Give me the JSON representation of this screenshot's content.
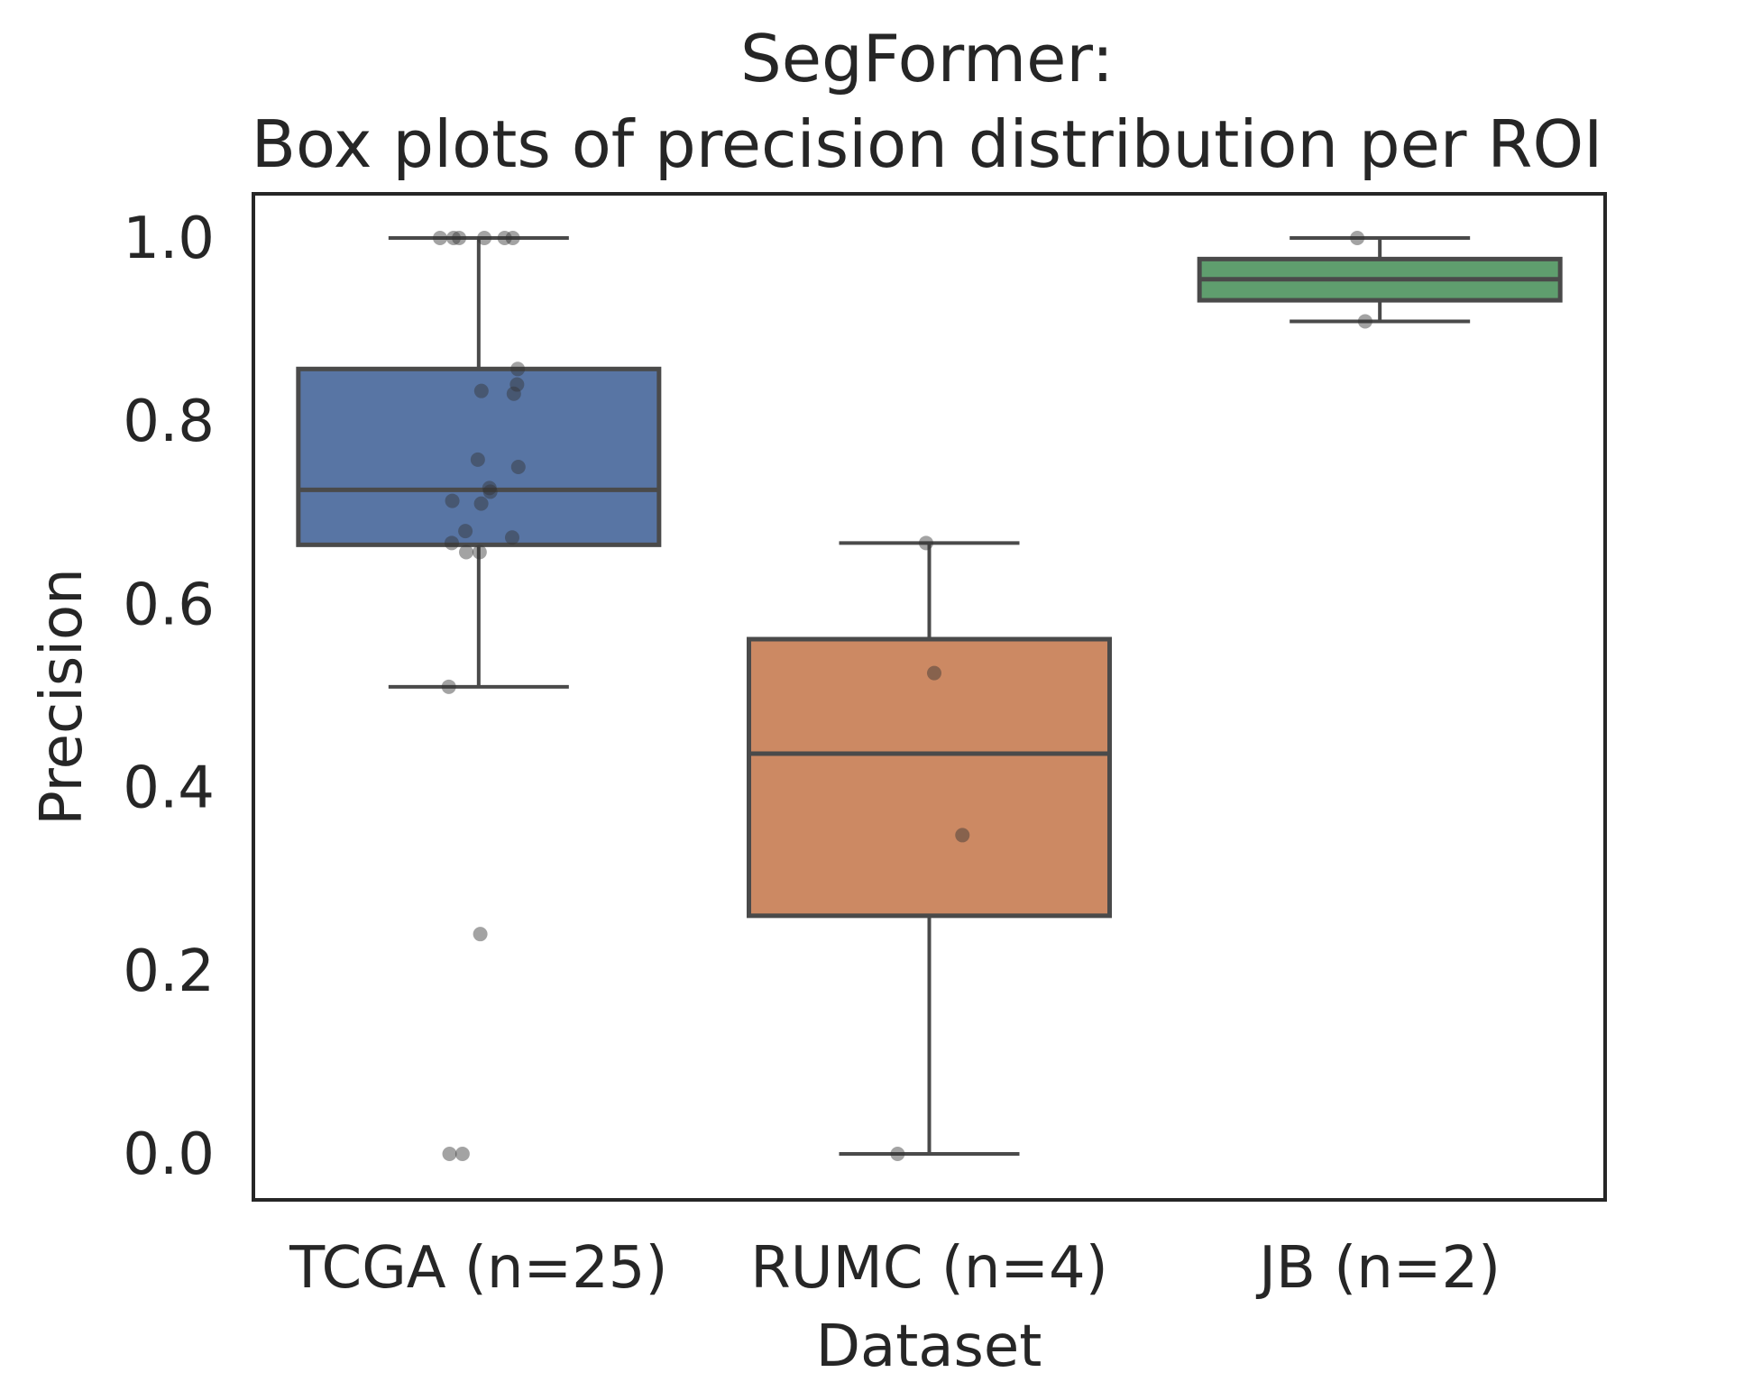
{
  "chart_data": {
    "type": "box",
    "title": [
      "SegFormer:",
      "Box plots of precision distribution per ROI"
    ],
    "xlabel": "Dataset",
    "ylabel": "Precision",
    "ylim": [
      -0.05,
      1.05
    ],
    "yticks": [
      "0.0",
      "0.2",
      "0.4",
      "0.6",
      "0.8",
      "1.0"
    ],
    "categories": [
      "TCGA (n=25)",
      "RUMC (n=4)",
      "JB (n=2)"
    ],
    "grid": false,
    "boxes": [
      {
        "name": "TCGA (n=25)",
        "color": "#5875a4",
        "whisker_low": 0.51,
        "q1": 0.665,
        "median": 0.725,
        "q3": 0.857,
        "whisker_high": 1.0,
        "points": [
          1.0,
          1.0,
          1.0,
          1.0,
          1.0,
          1.0,
          0.857,
          0.84,
          0.833,
          0.83,
          0.758,
          0.75,
          0.727,
          0.723,
          0.713,
          0.71,
          0.68,
          0.673,
          0.667,
          0.657,
          0.657,
          0.51,
          0.24,
          0.0,
          0.0
        ]
      },
      {
        "name": "RUMC (n=4)",
        "color": "#cc8963",
        "whisker_low": 0.0,
        "q1": 0.26,
        "median": 0.437,
        "q3": 0.562,
        "whisker_high": 0.667,
        "points": [
          0.667,
          0.525,
          0.348,
          0.0
        ]
      },
      {
        "name": "JB (n=2)",
        "color": "#5f9e6e",
        "whisker_low": 0.909,
        "q1": 0.932,
        "median": 0.955,
        "q3": 0.977,
        "whisker_high": 1.0,
        "points": [
          1.0,
          0.909
        ]
      }
    ]
  }
}
